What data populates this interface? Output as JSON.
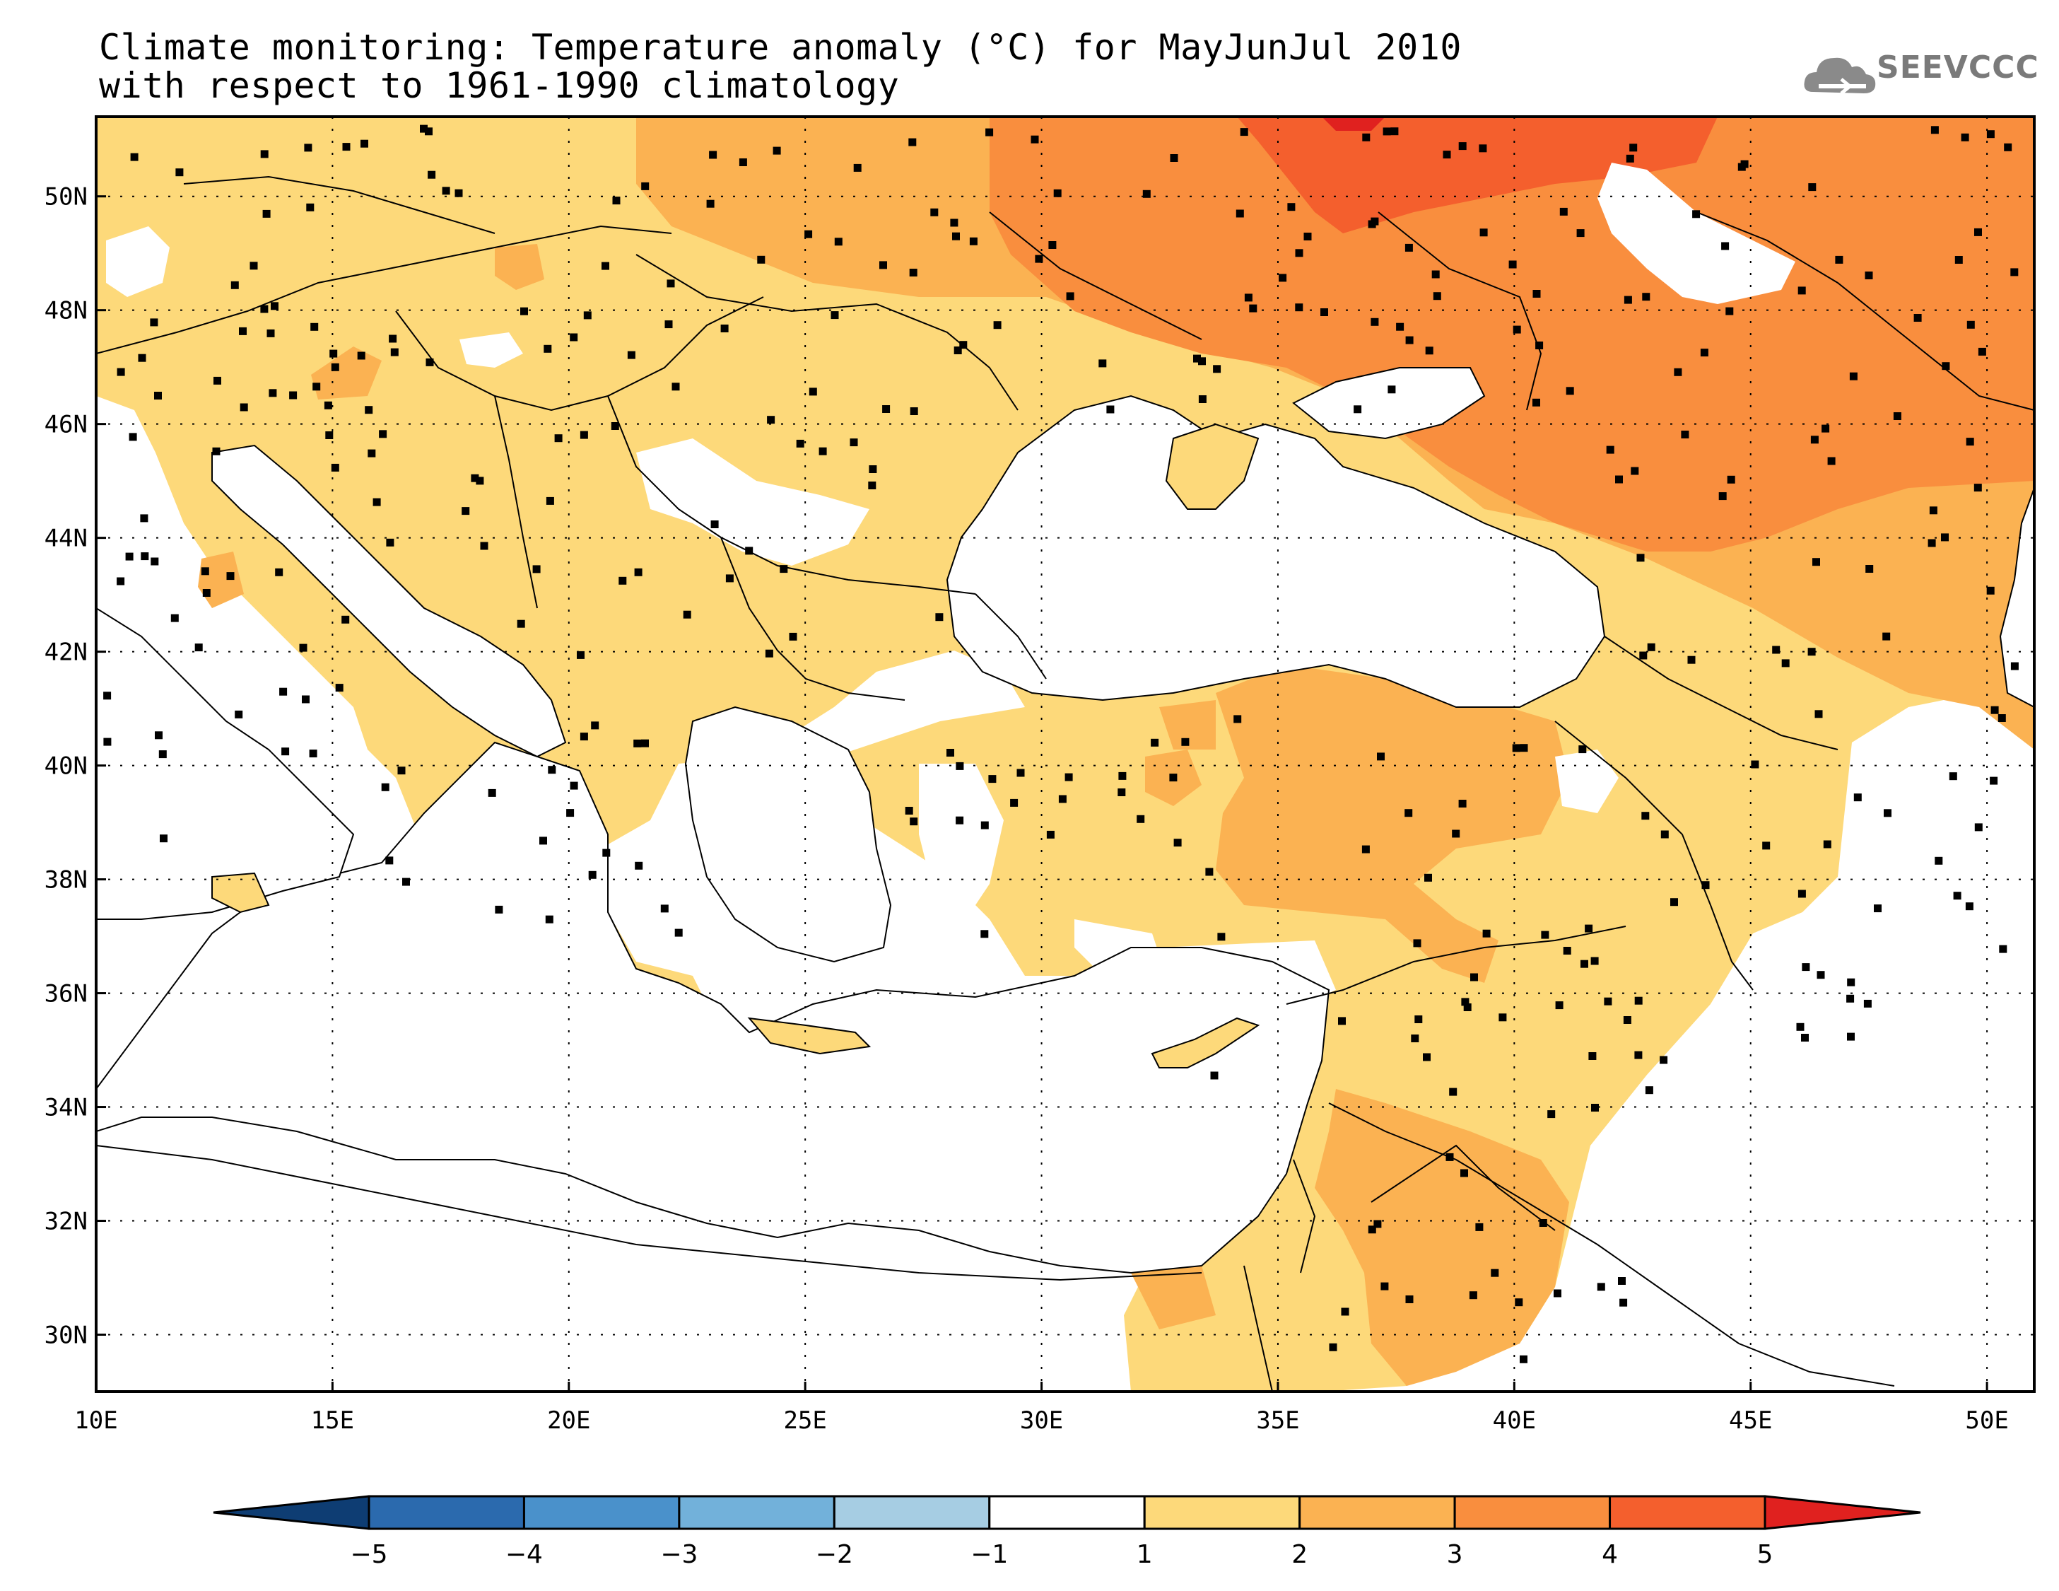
{
  "title": {
    "line1": "Climate monitoring: Temperature anomaly (°C) for MayJunJul 2010",
    "line2": "with respect to 1961-1990 climatology"
  },
  "logo": {
    "text": "SEEVCCC"
  },
  "map": {
    "lon_range": [
      10,
      51
    ],
    "lat_range": [
      29,
      51.4
    ],
    "lon_ticks": [
      "10E",
      "15E",
      "20E",
      "25E",
      "30E",
      "35E",
      "40E",
      "45E",
      "50E"
    ],
    "lat_ticks": [
      "30N",
      "32N",
      "34N",
      "36N",
      "38N",
      "40N",
      "42N",
      "44N",
      "46N",
      "48N",
      "50N"
    ],
    "gridlines": "dotted"
  },
  "colorbar": {
    "labels": [
      "-5",
      "-4",
      "-3",
      "-2",
      "-1",
      "1",
      "2",
      "3",
      "4",
      "5"
    ],
    "colors": [
      "#0e3d73",
      "#2b6aae",
      "#4a91cb",
      "#72b1da",
      "#a6cde3",
      "#ffffff",
      "#fdd97a",
      "#fbb252",
      "#f98e3e",
      "#f45f2d",
      "#e0211f"
    ]
  },
  "levels": {
    "1_2": "#fdd97a",
    "2_3": "#fbb252",
    "3_4": "#f98e3e",
    "4_5": "#f45f2d",
    "5_plus": "#e0211f"
  }
}
